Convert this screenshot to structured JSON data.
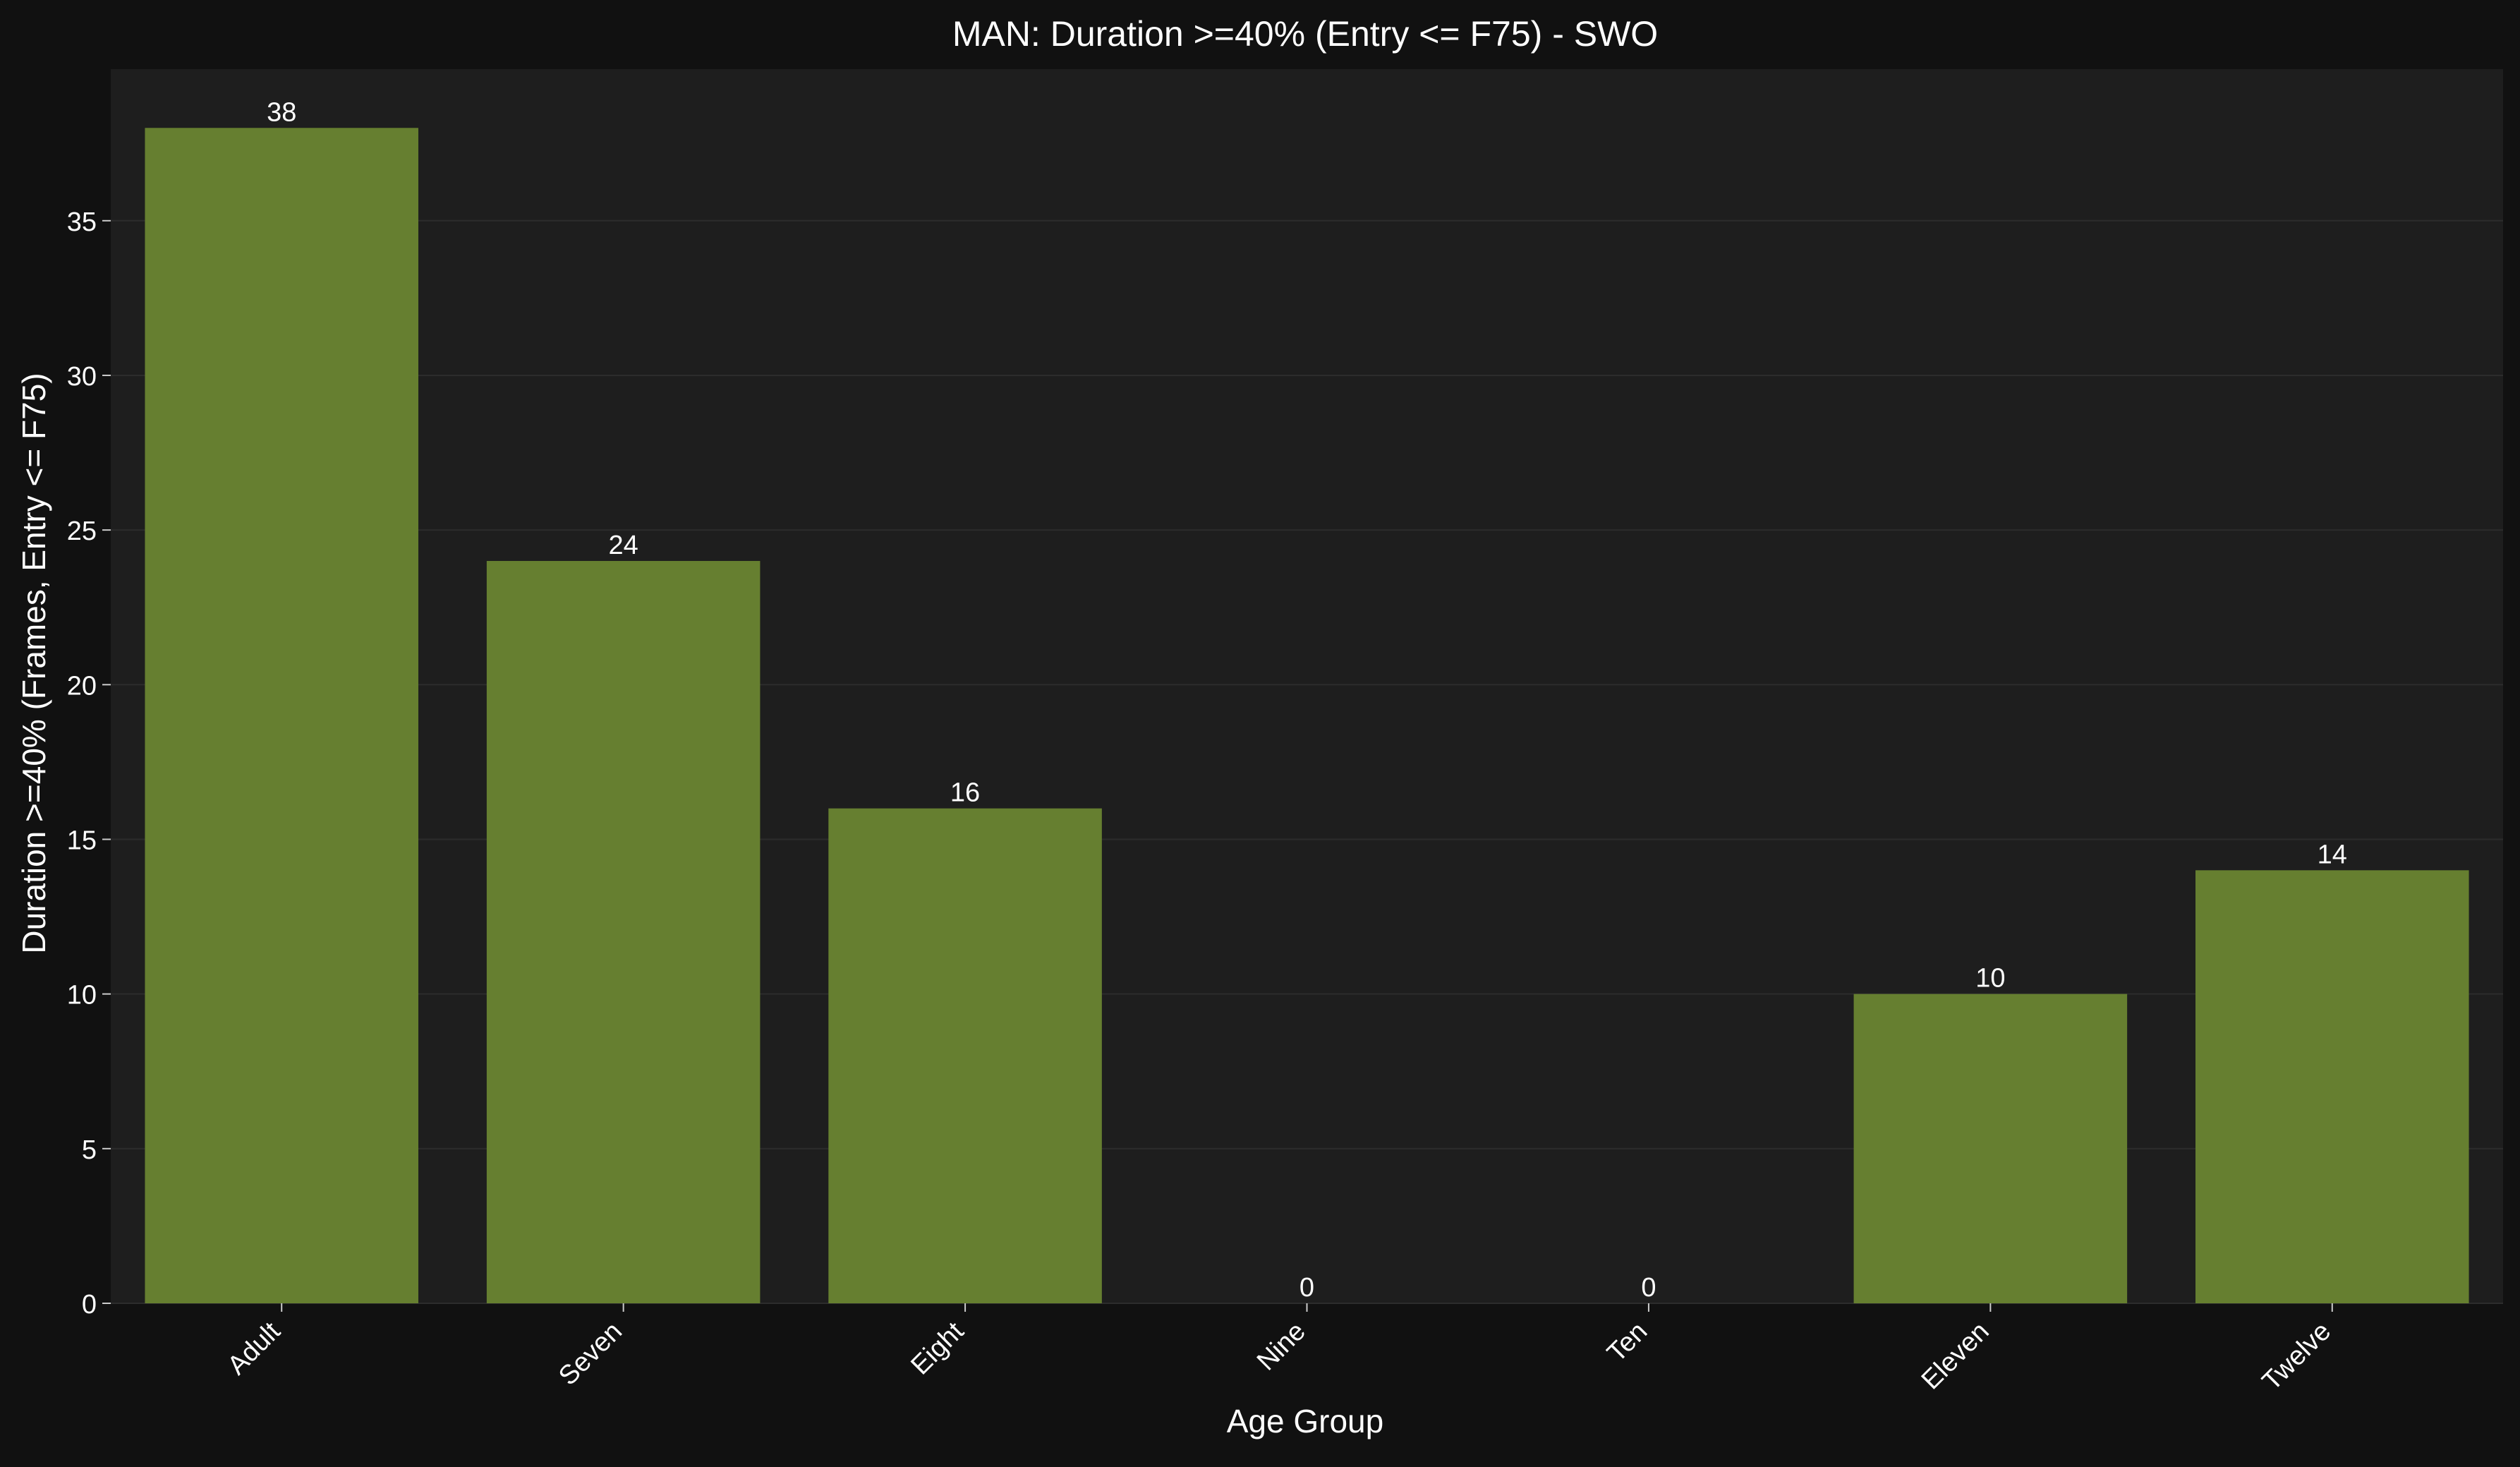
{
  "chart_data": {
    "type": "bar",
    "title": "MAN: Duration >=40% (Entry <= F75) - SWO",
    "xlabel": "Age Group",
    "ylabel": "Duration >=40% (Frames, Entry <= F75)",
    "categories": [
      "Adult",
      "Seven",
      "Eight",
      "Nine",
      "Ten",
      "Eleven",
      "Twelve"
    ],
    "values": [
      38,
      24,
      16,
      0,
      0,
      10,
      14
    ],
    "data_labels": [
      "38",
      "24",
      "16",
      "0",
      "0",
      "10",
      "14"
    ],
    "ylim": [
      0,
      39.9
    ],
    "yticks": [
      0,
      5,
      10,
      15,
      20,
      25,
      30,
      35
    ],
    "ytick_labels": [
      "0",
      "5",
      "10",
      "15",
      "20",
      "25",
      "30",
      "35"
    ],
    "grid": "y",
    "legend": "none",
    "colors": {
      "figure_background": "#111111",
      "plot_background": "#1e1e1e",
      "bar": "#667f30",
      "grid": "#2c2c2c",
      "text": "#ffffff"
    }
  }
}
